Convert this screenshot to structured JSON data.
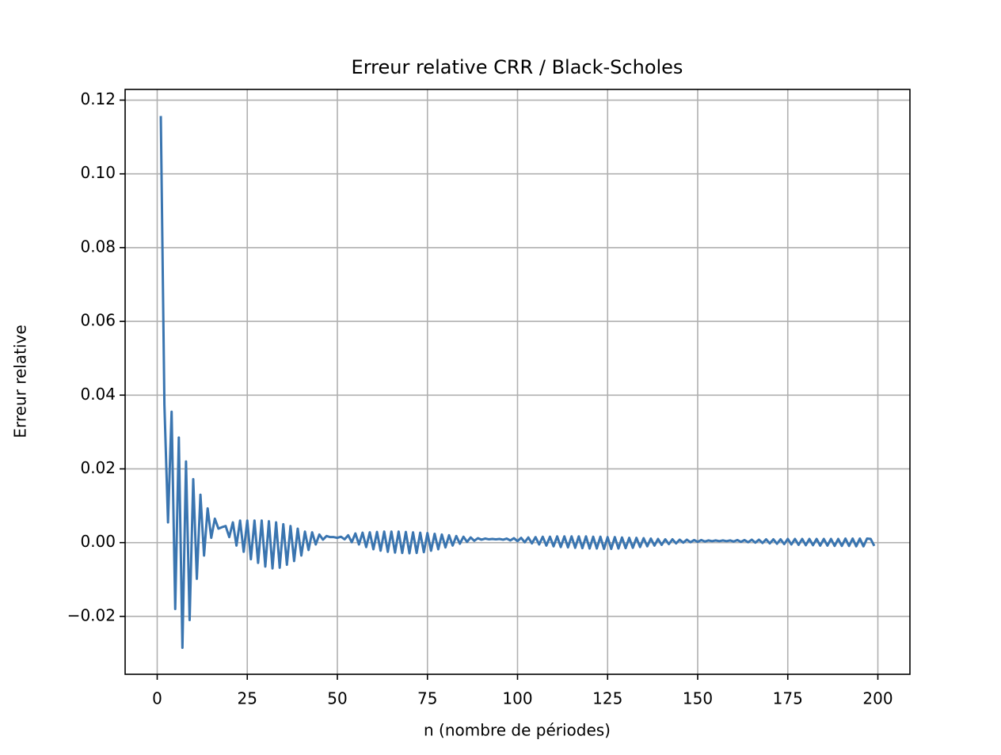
{
  "chart_data": {
    "type": "line",
    "title": "Erreur relative CRR / Black-Scholes",
    "xlabel": "n (nombre de périodes)",
    "ylabel": "Erreur relative",
    "color": "#3a75b0",
    "grid": true,
    "xlim": [
      -8.9,
      208.9
    ],
    "ylim": [
      -0.0357,
      0.1229
    ],
    "xticks": [
      0,
      25,
      50,
      75,
      100,
      125,
      150,
      175,
      200
    ],
    "yticks": [
      {
        "value": -0.02,
        "label": "−0.02"
      },
      {
        "value": 0,
        "label": "0.00"
      },
      {
        "value": 0.02,
        "label": "0.02"
      },
      {
        "value": 0.04,
        "label": "0.04"
      },
      {
        "value": 0.06,
        "label": "0.06"
      },
      {
        "value": 0.08,
        "label": "0.08"
      },
      {
        "value": 0.1,
        "label": "0.10"
      },
      {
        "value": 0.12,
        "label": "0.12"
      }
    ],
    "x": [
      1,
      2,
      3,
      4,
      5,
      6,
      7,
      8,
      9,
      10,
      11,
      12,
      13,
      14,
      15,
      16,
      17,
      18,
      19,
      20,
      21,
      22,
      23,
      24,
      25,
      26,
      27,
      28,
      29,
      30,
      31,
      32,
      33,
      34,
      35,
      36,
      37,
      38,
      39,
      40,
      41,
      42,
      43,
      44,
      45,
      46,
      47,
      48,
      49,
      50,
      51,
      52,
      53,
      54,
      55,
      56,
      57,
      58,
      59,
      60,
      61,
      62,
      63,
      64,
      65,
      66,
      67,
      68,
      69,
      70,
      71,
      72,
      73,
      74,
      75,
      76,
      77,
      78,
      79,
      80,
      81,
      82,
      83,
      84,
      85,
      86,
      87,
      88,
      89,
      90,
      91,
      92,
      93,
      94,
      95,
      96,
      97,
      98,
      99,
      100,
      101,
      102,
      103,
      104,
      105,
      106,
      107,
      108,
      109,
      110,
      111,
      112,
      113,
      114,
      115,
      116,
      117,
      118,
      119,
      120,
      121,
      122,
      123,
      124,
      125,
      126,
      127,
      128,
      129,
      130,
      131,
      132,
      133,
      134,
      135,
      136,
      137,
      138,
      139,
      140,
      141,
      142,
      143,
      144,
      145,
      146,
      147,
      148,
      149,
      150,
      151,
      152,
      153,
      154,
      155,
      156,
      157,
      158,
      159,
      160,
      161,
      162,
      163,
      164,
      165,
      166,
      167,
      168,
      169,
      170,
      171,
      172,
      173,
      174,
      175,
      176,
      177,
      178,
      179,
      180,
      181,
      182,
      183,
      184,
      185,
      186,
      187,
      188,
      189,
      190,
      191,
      192,
      193,
      194,
      195,
      196,
      197,
      198,
      199
    ],
    "values": [
      0.1157,
      0.0374,
      0.0055,
      0.0355,
      -0.018,
      0.0285,
      -0.0285,
      0.022,
      -0.021,
      0.0172,
      -0.0098,
      0.013,
      -0.0035,
      0.0093,
      0.0013,
      0.0065,
      0.0038,
      0.0042,
      0.0045,
      0.0015,
      0.0055,
      -0.0008,
      0.006,
      -0.0025,
      0.006,
      -0.0045,
      0.006,
      -0.0055,
      0.006,
      -0.0065,
      0.0058,
      -0.007,
      0.0055,
      -0.0068,
      0.005,
      -0.006,
      0.0045,
      -0.005,
      0.0038,
      -0.0035,
      0.003,
      -0.002,
      0.0028,
      -0.0005,
      0.0022,
      0.0008,
      0.0018,
      0.0015,
      0.0015,
      0.0013,
      0.0016,
      0.0009,
      0.002,
      0.0001,
      0.0025,
      -0.0005,
      0.0027,
      -0.0012,
      0.0028,
      -0.0018,
      0.0029,
      -0.0022,
      0.003,
      -0.0025,
      0.003,
      -0.0027,
      0.003,
      -0.0028,
      0.0029,
      -0.0029,
      0.0028,
      -0.0028,
      0.0027,
      -0.0026,
      0.0026,
      -0.0022,
      0.0024,
      -0.0018,
      0.0022,
      -0.0013,
      0.002,
      -0.0008,
      0.0018,
      -0.0003,
      0.0016,
      0.0002,
      0.0014,
      0.0005,
      0.0012,
      0.0008,
      0.0011,
      0.0009,
      0.001,
      0.0009,
      0.001,
      0.0008,
      0.0011,
      0.0006,
      0.0012,
      0.0004,
      0.0013,
      0.0001,
      0.0014,
      -0.0002,
      0.0015,
      -0.0005,
      0.0016,
      -0.0008,
      0.0016,
      -0.001,
      0.0017,
      -0.0012,
      0.0017,
      -0.0013,
      0.0017,
      -0.0014,
      0.0017,
      -0.0015,
      0.0017,
      -0.0016,
      0.0016,
      -0.0016,
      0.0016,
      -0.0017,
      0.0015,
      -0.0017,
      0.0015,
      -0.0016,
      0.0014,
      -0.0015,
      0.0013,
      -0.0014,
      0.0013,
      -0.0012,
      0.0012,
      -0.001,
      0.0011,
      -0.0008,
      0.001,
      -0.0006,
      0.0009,
      -0.0004,
      0.0009,
      -0.0002,
      0.0008,
      0,
      0.0008,
      0.0001,
      0.0007,
      0.0002,
      0.0007,
      0.0003,
      0.0006,
      0.0004,
      0.0006,
      0.0004,
      0.0006,
      0.0004,
      0.0006,
      0.0003,
      0.0007,
      0.0002,
      0.0007,
      0.0001,
      0.0008,
      0,
      0.0008,
      -0.0001,
      0.0009,
      -0.0002,
      0.0009,
      -0.0003,
      0.0009,
      -0.0004,
      0.001,
      -0.0005,
      0.001,
      -0.0006,
      0.001,
      -0.0007,
      0.001,
      -0.0007,
      0.001,
      -0.0008,
      0.001,
      -0.0008,
      0.001,
      -0.0009,
      0.001,
      -0.0009,
      0.0011,
      -0.0009,
      0.0011,
      -0.001,
      0.0011,
      -0.001,
      0.0011,
      0.001,
      -0.0009
    ]
  }
}
